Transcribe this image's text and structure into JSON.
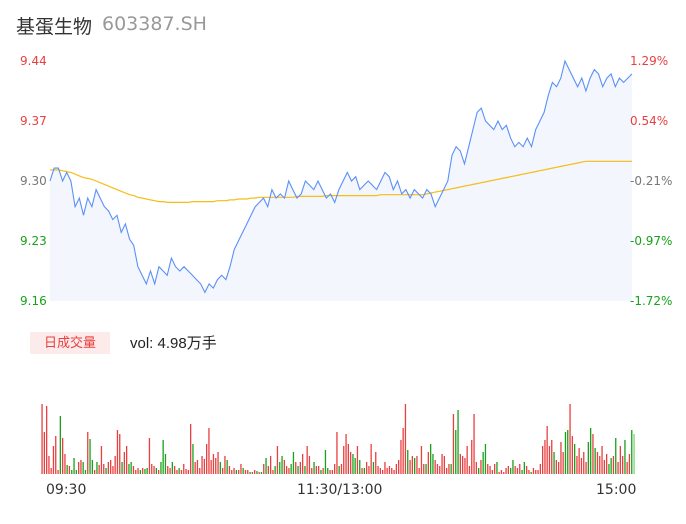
{
  "header": {
    "name": "基蛋生物",
    "code": "603387.SH"
  },
  "chart_data": {
    "type": "line",
    "price_axis": {
      "ticks": [
        "9.44",
        "9.37",
        "9.30",
        "9.23",
        "9.16"
      ],
      "ylim": [
        9.16,
        9.44
      ]
    },
    "pct_axis": {
      "ticks": [
        "1.29%",
        "0.54%",
        "-0.21%",
        "-0.97%",
        "-1.72%"
      ]
    },
    "time_labels": [
      "09:30",
      "11:30/13:00",
      "15:00"
    ],
    "colors": {
      "price": "#5b8ff9",
      "avg": "#f6bd16",
      "up": "#e84040",
      "down": "#19a119",
      "flat": "#7bd17b"
    },
    "series": [
      {
        "values": [
          9.3,
          9.315,
          9.315,
          9.3,
          9.31,
          9.3,
          9.27,
          9.28,
          9.26,
          9.28,
          9.27,
          9.29,
          9.28,
          9.27,
          9.265,
          9.255,
          9.26,
          9.24,
          9.25,
          9.232,
          9.225,
          9.2,
          9.19,
          9.18,
          9.195,
          9.18,
          9.2,
          9.195,
          9.19,
          9.21,
          9.2,
          9.195,
          9.2,
          9.195,
          9.19,
          9.185,
          9.18,
          9.17,
          9.18,
          9.175,
          9.185,
          9.19,
          9.185,
          9.2,
          9.22,
          9.23,
          9.24,
          9.25,
          9.26,
          9.27,
          9.275,
          9.28,
          9.27,
          9.29,
          9.28,
          9.285,
          9.28,
          9.3,
          9.29,
          9.28,
          9.285,
          9.3,
          9.295,
          9.29,
          9.3,
          9.29,
          9.28,
          9.285,
          9.275,
          9.29,
          9.3,
          9.31,
          9.3,
          9.305,
          9.29,
          9.295,
          9.3,
          9.295,
          9.29,
          9.3,
          9.31,
          9.305,
          9.29,
          9.3,
          9.285,
          9.29,
          9.28,
          9.29,
          9.285,
          9.28,
          9.29,
          9.285,
          9.27,
          9.28,
          9.29,
          9.3,
          9.33,
          9.34,
          9.335,
          9.32,
          9.34,
          9.36,
          9.38,
          9.385,
          9.37,
          9.365,
          9.36,
          9.37,
          9.36,
          9.365,
          9.35,
          9.34,
          9.345,
          9.34,
          9.35,
          9.34,
          9.36,
          9.37,
          9.38,
          9.4,
          9.415,
          9.41,
          9.42,
          9.44,
          9.43,
          9.42,
          9.41,
          9.42,
          9.405,
          9.42,
          9.43,
          9.425,
          9.41,
          9.42,
          9.425,
          9.41,
          9.42,
          9.415,
          9.42,
          9.425
        ],
        "note": "price"
      },
      {
        "values": [
          9.313,
          9.313,
          9.313,
          9.312,
          9.311,
          9.31,
          9.308,
          9.306,
          9.304,
          9.303,
          9.302,
          9.3,
          9.298,
          9.296,
          9.294,
          9.292,
          9.29,
          9.288,
          9.286,
          9.284,
          9.283,
          9.281,
          9.28,
          9.279,
          9.278,
          9.277,
          9.276,
          9.276,
          9.275,
          9.275,
          9.275,
          9.275,
          9.275,
          9.275,
          9.276,
          9.276,
          9.276,
          9.276,
          9.276,
          9.276,
          9.277,
          9.277,
          9.277,
          9.278,
          9.278,
          9.279,
          9.279,
          9.279,
          9.28,
          9.28,
          9.281,
          9.281,
          9.281,
          9.281,
          9.281,
          9.281,
          9.281,
          9.281,
          9.281,
          9.282,
          9.282,
          9.282,
          9.282,
          9.282,
          9.282,
          9.282,
          9.283,
          9.283,
          9.283,
          9.283,
          9.283,
          9.283,
          9.283,
          9.283,
          9.283,
          9.283,
          9.283,
          9.283,
          9.283,
          9.284,
          9.284,
          9.284,
          9.284,
          9.284,
          9.284,
          9.284,
          9.284,
          9.284,
          9.284,
          9.284,
          9.285,
          9.286,
          9.287,
          9.288,
          9.289,
          9.29,
          9.291,
          9.292,
          9.293,
          9.294,
          9.295,
          9.296,
          9.297,
          9.298,
          9.299,
          9.3,
          9.301,
          9.302,
          9.303,
          9.304,
          9.305,
          9.306,
          9.307,
          9.308,
          9.309,
          9.31,
          9.311,
          9.312,
          9.313,
          9.314,
          9.315,
          9.316,
          9.317,
          9.318,
          9.319,
          9.32,
          9.321,
          9.322,
          9.323,
          9.323,
          9.323,
          9.323,
          9.323,
          9.323,
          9.323,
          9.323,
          9.323,
          9.323,
          9.323,
          9.323
        ],
        "note": "avg"
      }
    ],
    "volume": {
      "label": "日成交量",
      "text": "vol: 4.98万手",
      "max": 100,
      "bars": [
        [
          70,
          "u"
        ],
        [
          42,
          "u"
        ],
        [
          68,
          "u"
        ],
        [
          18,
          "u"
        ],
        [
          6,
          "u"
        ],
        [
          28,
          "u"
        ],
        [
          38,
          "u"
        ],
        [
          4,
          "u"
        ],
        [
          58,
          "d"
        ],
        [
          36,
          "u"
        ],
        [
          20,
          "u"
        ],
        [
          9,
          "d"
        ],
        [
          8,
          "u"
        ],
        [
          4,
          "d"
        ],
        [
          16,
          "d"
        ],
        [
          4,
          "d"
        ],
        [
          12,
          "u"
        ],
        [
          14,
          "u"
        ],
        [
          12,
          "d"
        ],
        [
          4,
          "d"
        ],
        [
          42,
          "u"
        ],
        [
          35,
          "d"
        ],
        [
          14,
          "d"
        ],
        [
          4,
          "u"
        ],
        [
          12,
          "d"
        ],
        [
          9,
          "u"
        ],
        [
          28,
          "u"
        ],
        [
          10,
          "u"
        ],
        [
          6,
          "d"
        ],
        [
          12,
          "u"
        ],
        [
          14,
          "u"
        ],
        [
          8,
          "u"
        ],
        [
          18,
          "u"
        ],
        [
          44,
          "u"
        ],
        [
          40,
          "u"
        ],
        [
          12,
          "d"
        ],
        [
          22,
          "u"
        ],
        [
          28,
          "u"
        ],
        [
          10,
          "d"
        ],
        [
          12,
          "d"
        ],
        [
          8,
          "u"
        ],
        [
          4,
          "u"
        ],
        [
          6,
          "u"
        ],
        [
          4,
          "d"
        ],
        [
          6,
          "u"
        ],
        [
          5,
          "d"
        ],
        [
          6,
          "d"
        ],
        [
          36,
          "u"
        ],
        [
          10,
          "u"
        ],
        [
          8,
          "u"
        ],
        [
          6,
          "d"
        ],
        [
          4,
          "u"
        ],
        [
          12,
          "d"
        ],
        [
          34,
          "d"
        ],
        [
          20,
          "d"
        ],
        [
          8,
          "u"
        ],
        [
          6,
          "u"
        ],
        [
          12,
          "d"
        ],
        [
          8,
          "u"
        ],
        [
          4,
          "u"
        ],
        [
          6,
          "d"
        ],
        [
          4,
          "u"
        ],
        [
          10,
          "u"
        ],
        [
          5,
          "u"
        ],
        [
          4,
          "u"
        ],
        [
          50,
          "u"
        ],
        [
          30,
          "d"
        ],
        [
          12,
          "u"
        ],
        [
          14,
          "u"
        ],
        [
          6,
          "u"
        ],
        [
          18,
          "u"
        ],
        [
          15,
          "u"
        ],
        [
          30,
          "u"
        ],
        [
          46,
          "u"
        ],
        [
          14,
          "u"
        ],
        [
          20,
          "u"
        ],
        [
          16,
          "u"
        ],
        [
          22,
          "u"
        ],
        [
          12,
          "d"
        ],
        [
          6,
          "u"
        ],
        [
          18,
          "u"
        ],
        [
          14,
          "d"
        ],
        [
          8,
          "u"
        ],
        [
          4,
          "u"
        ],
        [
          6,
          "u"
        ],
        [
          4,
          "d"
        ],
        [
          4,
          "u"
        ],
        [
          10,
          "u"
        ],
        [
          6,
          "d"
        ],
        [
          4,
          "u"
        ],
        [
          4,
          "u"
        ],
        [
          2,
          "d"
        ],
        [
          2,
          "u"
        ],
        [
          4,
          "u"
        ],
        [
          3,
          "d"
        ],
        [
          2,
          "u"
        ],
        [
          2,
          "d"
        ],
        [
          10,
          "u"
        ],
        [
          16,
          "d"
        ],
        [
          8,
          "u"
        ],
        [
          18,
          "u"
        ],
        [
          4,
          "u"
        ],
        [
          8,
          "d"
        ],
        [
          28,
          "u"
        ],
        [
          12,
          "d"
        ],
        [
          18,
          "d"
        ],
        [
          14,
          "u"
        ],
        [
          8,
          "u"
        ],
        [
          6,
          "u"
        ],
        [
          10,
          "d"
        ],
        [
          22,
          "d"
        ],
        [
          12,
          "u"
        ],
        [
          8,
          "d"
        ],
        [
          12,
          "u"
        ],
        [
          20,
          "u"
        ],
        [
          8,
          "d"
        ],
        [
          28,
          "u"
        ],
        [
          18,
          "u"
        ],
        [
          6,
          "u"
        ],
        [
          12,
          "d"
        ],
        [
          8,
          "u"
        ],
        [
          8,
          "u"
        ],
        [
          4,
          "d"
        ],
        [
          6,
          "u"
        ],
        [
          24,
          "d"
        ],
        [
          6,
          "d"
        ],
        [
          4,
          "u"
        ],
        [
          4,
          "u"
        ],
        [
          10,
          "u"
        ],
        [
          42,
          "u"
        ],
        [
          8,
          "d"
        ],
        [
          10,
          "u"
        ],
        [
          28,
          "u"
        ],
        [
          40,
          "u"
        ],
        [
          30,
          "u"
        ],
        [
          22,
          "u"
        ],
        [
          20,
          "d"
        ],
        [
          16,
          "d"
        ],
        [
          28,
          "u"
        ],
        [
          14,
          "d"
        ],
        [
          6,
          "u"
        ],
        [
          6,
          "d"
        ],
        [
          12,
          "u"
        ],
        [
          8,
          "u"
        ],
        [
          30,
          "u"
        ],
        [
          12,
          "d"
        ],
        [
          22,
          "u"
        ],
        [
          8,
          "u"
        ],
        [
          6,
          "u"
        ],
        [
          4,
          "u"
        ],
        [
          12,
          "u"
        ],
        [
          6,
          "u"
        ],
        [
          8,
          "u"
        ],
        [
          6,
          "u"
        ],
        [
          4,
          "u"
        ],
        [
          10,
          "u"
        ],
        [
          14,
          "u"
        ],
        [
          34,
          "u"
        ],
        [
          46,
          "u"
        ],
        [
          70,
          "u"
        ],
        [
          24,
          "d"
        ],
        [
          14,
          "u"
        ],
        [
          18,
          "u"
        ],
        [
          16,
          "d"
        ],
        [
          18,
          "u"
        ],
        [
          6,
          "u"
        ],
        [
          28,
          "u"
        ],
        [
          10,
          "u"
        ],
        [
          10,
          "d"
        ],
        [
          22,
          "u"
        ],
        [
          30,
          "d"
        ],
        [
          20,
          "d"
        ],
        [
          14,
          "u"
        ],
        [
          10,
          "u"
        ],
        [
          8,
          "u"
        ],
        [
          20,
          "u"
        ],
        [
          18,
          "u"
        ],
        [
          6,
          "u"
        ],
        [
          10,
          "u"
        ],
        [
          10,
          "d"
        ],
        [
          60,
          "u"
        ],
        [
          44,
          "d"
        ],
        [
          64,
          "d"
        ],
        [
          20,
          "u"
        ],
        [
          18,
          "u"
        ],
        [
          16,
          "u"
        ],
        [
          28,
          "u"
        ],
        [
          8,
          "u"
        ],
        [
          34,
          "u"
        ],
        [
          60,
          "u"
        ],
        [
          12,
          "u"
        ],
        [
          6,
          "d"
        ],
        [
          14,
          "u"
        ],
        [
          22,
          "d"
        ],
        [
          30,
          "d"
        ],
        [
          10,
          "u"
        ],
        [
          8,
          "u"
        ],
        [
          4,
          "u"
        ],
        [
          10,
          "u"
        ],
        [
          12,
          "d"
        ],
        [
          2,
          "u"
        ],
        [
          4,
          "u"
        ],
        [
          2,
          "u"
        ],
        [
          6,
          "u"
        ],
        [
          8,
          "u"
        ],
        [
          6,
          "d"
        ],
        [
          14,
          "d"
        ],
        [
          8,
          "u"
        ],
        [
          6,
          "u"
        ],
        [
          10,
          "u"
        ],
        [
          4,
          "d"
        ],
        [
          12,
          "d"
        ],
        [
          8,
          "u"
        ],
        [
          4,
          "u"
        ],
        [
          2,
          "d"
        ],
        [
          6,
          "u"
        ],
        [
          4,
          "u"
        ],
        [
          4,
          "u"
        ],
        [
          10,
          "u"
        ],
        [
          28,
          "u"
        ],
        [
          34,
          "u"
        ],
        [
          48,
          "u"
        ],
        [
          28,
          "u"
        ],
        [
          34,
          "u"
        ],
        [
          22,
          "d"
        ],
        [
          14,
          "u"
        ],
        [
          12,
          "u"
        ],
        [
          32,
          "u"
        ],
        [
          22,
          "u"
        ],
        [
          42,
          "d"
        ],
        [
          44,
          "d"
        ],
        [
          70,
          "u"
        ],
        [
          38,
          "u"
        ],
        [
          30,
          "d"
        ],
        [
          18,
          "u"
        ],
        [
          26,
          "u"
        ],
        [
          16,
          "u"
        ],
        [
          22,
          "u"
        ],
        [
          12,
          "u"
        ],
        [
          32,
          "d"
        ],
        [
          46,
          "d"
        ],
        [
          40,
          "u"
        ],
        [
          26,
          "d"
        ],
        [
          22,
          "u"
        ],
        [
          18,
          "u"
        ],
        [
          28,
          "u"
        ],
        [
          14,
          "u"
        ],
        [
          20,
          "u"
        ],
        [
          10,
          "d"
        ],
        [
          16,
          "d"
        ],
        [
          18,
          "u"
        ],
        [
          36,
          "d"
        ],
        [
          12,
          "u"
        ],
        [
          28,
          "u"
        ],
        [
          18,
          "u"
        ],
        [
          34,
          "d"
        ],
        [
          12,
          "u"
        ],
        [
          20,
          "u"
        ],
        [
          44,
          "d"
        ],
        [
          40,
          "f"
        ]
      ]
    }
  }
}
